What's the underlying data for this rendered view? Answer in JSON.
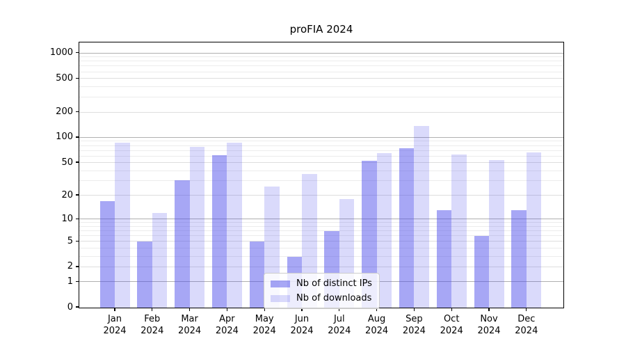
{
  "title": "proFIA 2024",
  "legend": {
    "items": [
      {
        "label": "Nb of distinct IPs",
        "color": "rgba(72,72,235,0.48)"
      },
      {
        "label": "Nb of downloads",
        "color": "rgba(72,72,235,0.20)"
      }
    ]
  },
  "chart_data": {
    "type": "bar",
    "title": "proFIA 2024",
    "categories": [
      "Jan 2024",
      "Feb 2024",
      "Mar 2024",
      "Apr 2024",
      "May 2024",
      "Jun 2024",
      "Jul 2024",
      "Aug 2024",
      "Sep 2024",
      "Oct 2024",
      "Nov 2024",
      "Dec 2024"
    ],
    "series": [
      {
        "name": "Nb of distinct IPs",
        "color": "rgba(72,72,235,0.48)",
        "values": [
          17,
          5,
          31,
          62,
          5,
          3,
          7,
          53,
          75,
          13,
          6,
          13
        ]
      },
      {
        "name": "Nb of downloads",
        "color": "rgba(72,72,235,0.20)",
        "values": [
          88,
          12,
          78,
          87,
          26,
          37,
          18,
          65,
          139,
          63,
          54,
          67
        ]
      }
    ],
    "xlabel": "",
    "ylabel": "",
    "yscale": "log1p",
    "ylim": [
      0,
      1317
    ],
    "yticks": [
      0,
      1,
      2,
      5,
      10,
      20,
      50,
      100,
      200,
      500,
      1000
    ],
    "ytick_major": [
      1,
      10,
      100,
      1000
    ],
    "ytick_mid": [
      2,
      5,
      20,
      50,
      200,
      500
    ],
    "grid": true,
    "legend_position": "lower center",
    "grid_colors": {
      "major": "#b0b0b0",
      "mid": "#dedede",
      "minor": "#ececec"
    }
  }
}
